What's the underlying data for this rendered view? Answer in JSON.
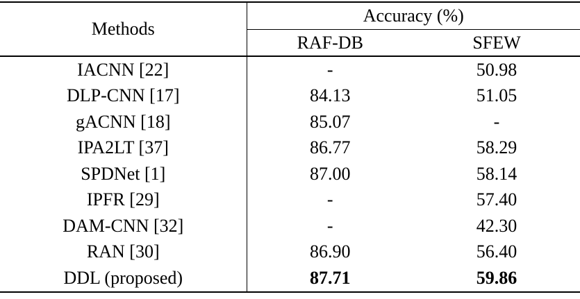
{
  "table": {
    "header": {
      "methods": "Methods",
      "accuracy_group": "Accuracy (%)",
      "col_rafdb": "RAF-DB",
      "col_sfew": "SFEW"
    },
    "rows": [
      {
        "method": "IACNN [22]",
        "raf_db": "-",
        "sfew": "50.98",
        "emphasized": false
      },
      {
        "method": "DLP-CNN [17]",
        "raf_db": "84.13",
        "sfew": "51.05",
        "emphasized": false
      },
      {
        "method": "gACNN [18]",
        "raf_db": "85.07",
        "sfew": "-",
        "emphasized": false
      },
      {
        "method": "IPA2LT [37]",
        "raf_db": "86.77",
        "sfew": "58.29",
        "emphasized": false
      },
      {
        "method": "SPDNet [1]",
        "raf_db": "87.00",
        "sfew": "58.14",
        "emphasized": false
      },
      {
        "method": "IPFR [29]",
        "raf_db": "-",
        "sfew": "57.40",
        "emphasized": false
      },
      {
        "method": "DAM-CNN [32]",
        "raf_db": "-",
        "sfew": "42.30",
        "emphasized": false
      },
      {
        "method": "RAN [30]",
        "raf_db": "86.90",
        "sfew": "56.40",
        "emphasized": false
      },
      {
        "method": "DDL (proposed)",
        "raf_db": "87.71",
        "sfew": "59.86",
        "emphasized": true
      }
    ]
  }
}
